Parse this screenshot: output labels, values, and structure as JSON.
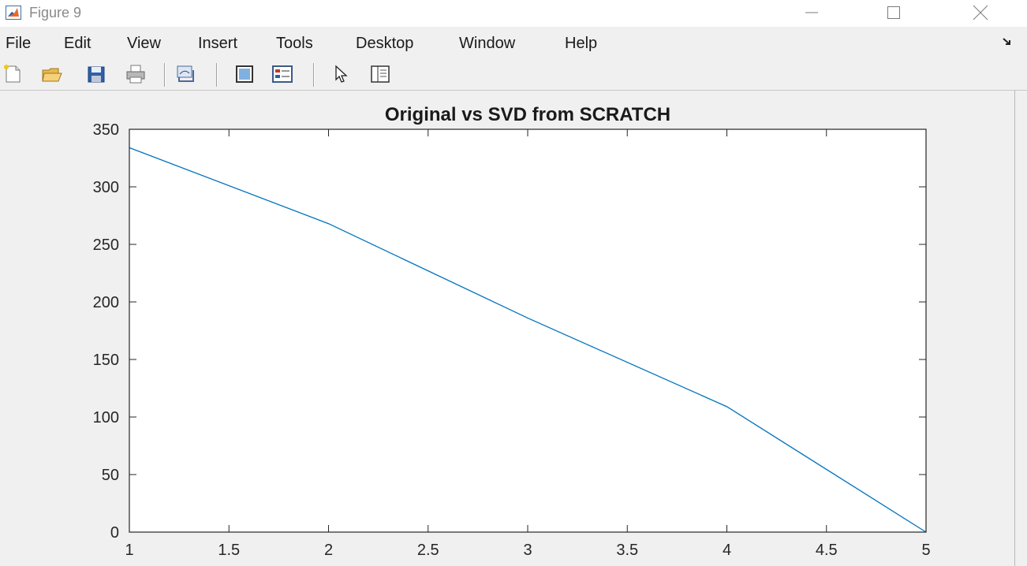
{
  "window": {
    "title": "Figure 9",
    "icon": "matlab-icon"
  },
  "menu": [
    "File",
    "Edit",
    "View",
    "Insert",
    "Tools",
    "Desktop",
    "Window",
    "Help"
  ],
  "toolbar": {
    "buttons": [
      "new-figure-icon",
      "open-file-icon",
      "save-icon",
      "print-icon",
      "link-plot-icon",
      "insert-colorbar-icon",
      "insert-legend-icon",
      "edit-plot-pointer-icon",
      "property-inspector-icon"
    ]
  },
  "colors": {
    "line": "#0072bd",
    "axes_bg": "#ffffff",
    "figure_bg": "#f0f0f0"
  },
  "chart_data": {
    "type": "line",
    "title": "Original vs SVD from SCRATCH",
    "xlabel": "",
    "ylabel": "",
    "xlim": [
      1,
      5
    ],
    "ylim": [
      0,
      350
    ],
    "xticks": [
      1,
      1.5,
      2,
      2.5,
      3,
      3.5,
      4,
      4.5,
      5
    ],
    "xtick_labels": [
      "1",
      "1.5",
      "2",
      "2.5",
      "3",
      "3.5",
      "4",
      "4.5",
      "5"
    ],
    "yticks": [
      0,
      50,
      100,
      150,
      200,
      250,
      300,
      350
    ],
    "ytick_labels": [
      "0",
      "50",
      "100",
      "150",
      "200",
      "250",
      "300",
      "350"
    ],
    "grid": false,
    "series": [
      {
        "x": [
          1,
          2,
          3,
          4,
          5
        ],
        "y": [
          334,
          268,
          186,
          109,
          0
        ]
      }
    ]
  }
}
